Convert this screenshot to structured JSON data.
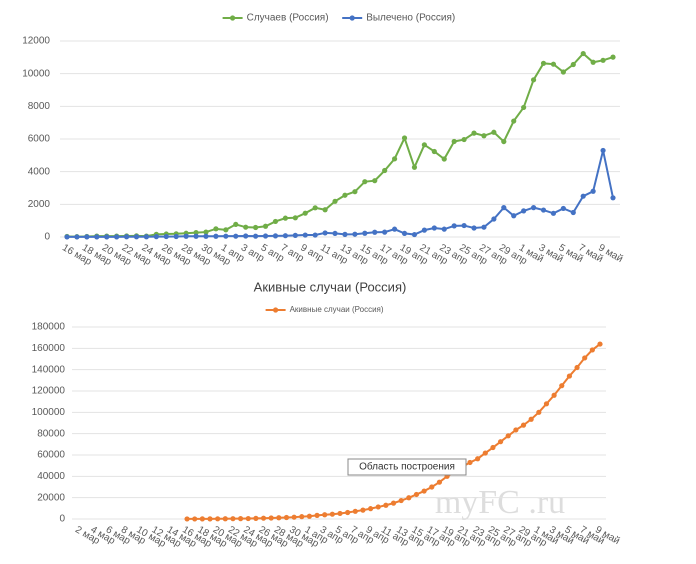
{
  "chart_data": [
    {
      "type": "line",
      "categories": [
        "16 мар",
        null,
        "18 мар",
        null,
        "20 мар",
        null,
        "22 мар",
        null,
        "24 мар",
        null,
        "26 мар",
        null,
        "28 мар",
        null,
        "30 мар",
        null,
        "1 апр",
        null,
        "3 апр",
        null,
        "5 апр",
        null,
        "7 апр",
        null,
        "9 апр",
        null,
        "11 апр",
        null,
        "13 апр",
        null,
        "15 апр",
        null,
        "17 апр",
        null,
        "19 апр",
        null,
        "21 апр",
        null,
        "23 апр",
        null,
        "25 апр",
        null,
        "27 апр",
        null,
        "29 апр",
        null,
        "1 май",
        null,
        "3 май",
        null,
        "5 май",
        null,
        "7 май",
        null,
        "9 май",
        null
      ],
      "series": [
        {
          "name": "Случаев (Россия)",
          "color": "#70ad47",
          "values": [
            30,
            21,
            33,
            52,
            54,
            53,
            61,
            71,
            57,
            163,
            182,
            196,
            228,
            270,
            302,
            500,
            440,
            771,
            601,
            582,
            658,
            954,
            1154,
            1175,
            1459,
            1786,
            1667,
            2186,
            2558,
            2774,
            3388,
            3448,
            4070,
            4785,
            6060,
            4268,
            5642,
            5236,
            4774,
            5849,
            5966,
            6361,
            6198,
            6411,
            5841,
            7099,
            7933,
            9623,
            10633,
            10581,
            10102,
            10559,
            11231,
            10699,
            10817,
            11012
          ]
        },
        {
          "name": "Вылечено (Россия)",
          "color": "#4472c4",
          "values": [
            5,
            5,
            8,
            8,
            9,
            9,
            16,
            16,
            16,
            22,
            26,
            29,
            45,
            45,
            45,
            45,
            50,
            50,
            60,
            50,
            60,
            70,
            80,
            100,
            120,
            120,
            250,
            220,
            160,
            170,
            230,
            290,
            300,
            480,
            220,
            150,
            420,
            550,
            480,
            680,
            700,
            550,
            600,
            1100,
            1800,
            1300,
            1600,
            1800,
            1650,
            1450,
            1750,
            1500,
            2500,
            2800,
            5300,
            2400
          ]
        }
      ],
      "ylim": [
        0,
        12000
      ],
      "yticks": [
        0,
        2000,
        4000,
        6000,
        8000,
        10000,
        12000
      ],
      "grid": true,
      "legend": "top"
    },
    {
      "type": "line",
      "title": "Акивные случаи (Россия)",
      "categories": [
        "2 мар",
        null,
        "4 мар",
        null,
        "6 мар",
        null,
        "8 мар",
        null,
        "10 мар",
        null,
        "12 мар",
        null,
        "14 мар",
        null,
        "16 мар",
        null,
        "18 мар",
        null,
        "20 мар",
        null,
        "22 мар",
        null,
        "24 мар",
        null,
        "26 мар",
        null,
        "28 мар",
        null,
        "30 мар",
        null,
        "1 апр",
        null,
        "3 апр",
        null,
        "5 апр",
        null,
        "7 апр",
        null,
        "9 апр",
        null,
        "11 апр",
        null,
        "13 апр",
        null,
        "15 апр",
        null,
        "17 апр",
        null,
        "19 апр",
        null,
        "21 апр",
        null,
        "23 апр",
        null,
        "25 апр",
        null,
        "27 апр",
        null,
        "29 апр",
        null,
        "1 май",
        null,
        "3 май",
        null,
        "5 май",
        null,
        "7 май",
        null,
        "9 май"
      ],
      "series": [
        {
          "name": "Акивные случаи (Россия)",
          "color": "#ed7d31",
          "values": [
            null,
            null,
            null,
            null,
            null,
            null,
            null,
            null,
            null,
            null,
            null,
            null,
            null,
            null,
            60,
            80,
            110,
            140,
            190,
            240,
            300,
            360,
            420,
            570,
            750,
            950,
            1150,
            1400,
            1700,
            2200,
            2600,
            3400,
            4000,
            4500,
            5200,
            6100,
            7200,
            8300,
            9700,
            11300,
            12900,
            14900,
            17300,
            19900,
            23000,
            26200,
            30000,
            34500,
            40000,
            43800,
            49000,
            53000,
            56500,
            61800,
            67000,
            72500,
            78000,
            83500,
            88000,
            93500,
            100000,
            108000,
            116000,
            125000,
            134000,
            142000,
            151000,
            158500,
            164000
          ]
        }
      ],
      "ylim": [
        0,
        180000
      ],
      "yticks": [
        0,
        20000,
        40000,
        60000,
        80000,
        100000,
        120000,
        140000,
        160000,
        180000
      ],
      "grid": true,
      "legend": "top",
      "annotations": [
        "Область построения",
        "myFC .ru"
      ]
    }
  ]
}
